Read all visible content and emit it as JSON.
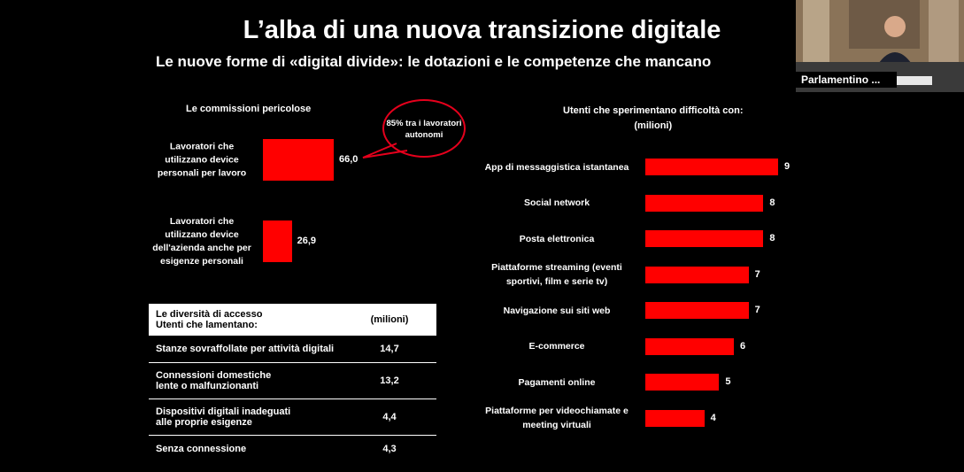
{
  "slide": {
    "title": "L’alba di una nuova transizione digitale",
    "subtitle": "Le nuove forme di «digital divide»: le dotazioni e le competenze che mancano"
  },
  "webcam": {
    "label": "Parlamentino ..."
  },
  "chart_data": [
    {
      "type": "bar",
      "orientation": "horizontal",
      "title": "Le commissioni pericolose",
      "categories": [
        "Lavoratori che utilizzano device personali per lavoro",
        "Lavoratori che utilizzano device dell'azienda anche per esigenze personali"
      ],
      "values": [
        66.0,
        26.9
      ],
      "value_labels": [
        "66,0",
        "26,9"
      ],
      "annotation": "85% tra i lavoratori autonomi",
      "colors": {
        "bar": "#ff0000"
      }
    },
    {
      "type": "bar",
      "orientation": "horizontal",
      "title": "Utenti che sperimentano difficoltà con:",
      "subtitle": "(milioni)",
      "categories": [
        "App di messaggistica istantanea",
        "Social network",
        "Posta elettronica",
        "Piattaforme streaming (eventi sportivi, film e serie tv)",
        "Navigazione sui siti web",
        "E-commerce",
        "Pagamenti online",
        "Piattaforme per videochiamate e meeting virtuali"
      ],
      "values": [
        9,
        8,
        8,
        7,
        7,
        6,
        5,
        4
      ],
      "value_labels": [
        "9",
        "8",
        "8",
        "7",
        "7",
        "6",
        "5",
        "4"
      ],
      "colors": {
        "bar": "#ff0000"
      }
    },
    {
      "type": "table",
      "header": {
        "line1": "Le diversità di accesso",
        "line2": "Utenti che lamentano:",
        "unit": "(milioni)"
      },
      "rows": [
        {
          "line1": "Stanze sovraffollate per attività digitali",
          "line2": "",
          "value": "14,7"
        },
        {
          "line1": "Connessioni domestiche",
          "line2": "lente o malfunzionanti",
          "value": "13,2"
        },
        {
          "line1": "Dispositivi digitali inadeguati",
          "line2": "alle proprie esigenze",
          "value": "4,4"
        },
        {
          "line1": "Senza connessione",
          "line2": "",
          "value": "4,3"
        }
      ]
    }
  ]
}
